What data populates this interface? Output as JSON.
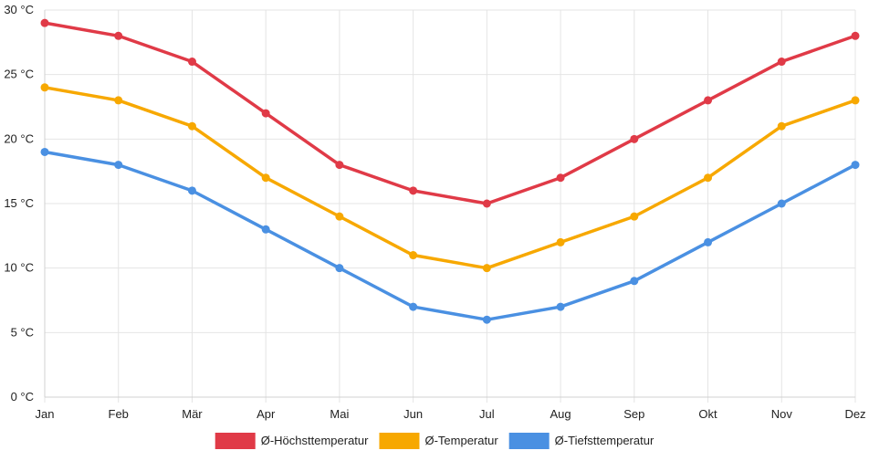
{
  "chart_data": {
    "type": "line",
    "title": "",
    "xlabel": "",
    "ylabel": "",
    "categories": [
      "Jan",
      "Feb",
      "Mär",
      "Apr",
      "Mai",
      "Jun",
      "Jul",
      "Aug",
      "Sep",
      "Okt",
      "Nov",
      "Dez"
    ],
    "ylim": [
      0,
      30
    ],
    "ytick_step": 5,
    "ytick_labels": [
      "0 °C",
      "5 °C",
      "10 °C",
      "15 °C",
      "20 °C",
      "25 °C",
      "30 °C"
    ],
    "grid": true,
    "legend_position": "bottom-center",
    "series": [
      {
        "name": "Ø-Höchsttemperatur",
        "color": "#e03a47",
        "values": [
          29,
          28,
          26,
          22,
          18,
          16,
          15,
          17,
          20,
          23,
          26,
          28
        ]
      },
      {
        "name": "Ø-Temperatur",
        "color": "#f7a800",
        "values": [
          24,
          23,
          21,
          17,
          14,
          11,
          10,
          12,
          14,
          17,
          21,
          23
        ]
      },
      {
        "name": "Ø-Tiefsttemperatur",
        "color": "#4a90e2",
        "values": [
          19,
          18,
          16,
          13,
          10,
          7,
          6,
          7,
          9,
          12,
          15,
          18
        ]
      }
    ]
  }
}
